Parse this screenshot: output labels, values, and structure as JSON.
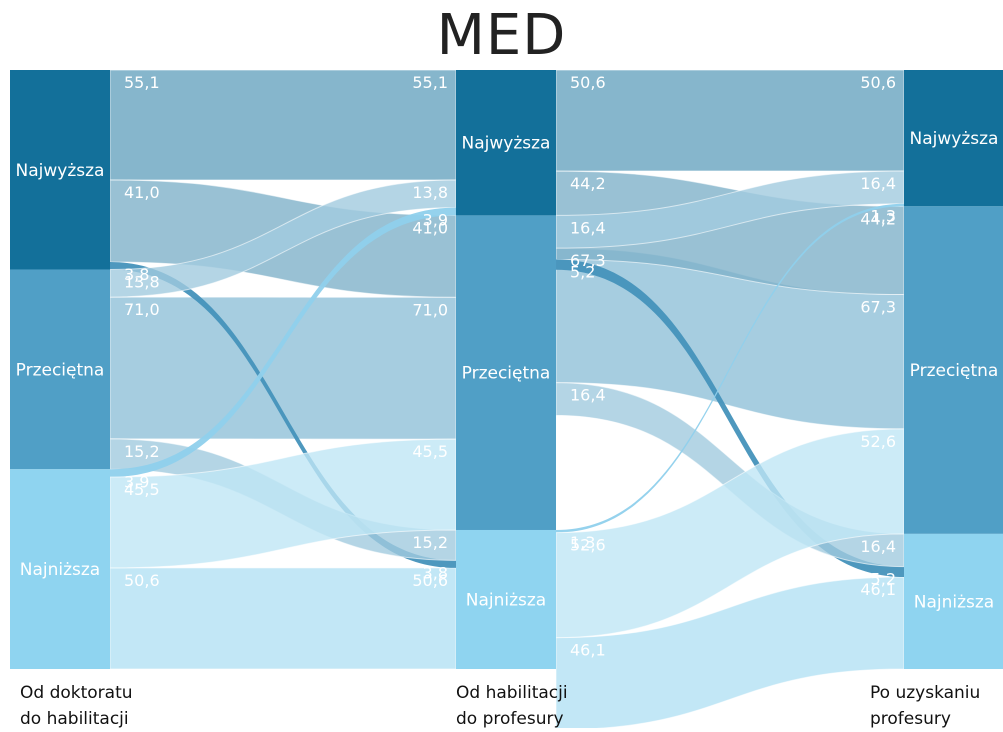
{
  "title": "MED",
  "stages": [
    "Od doktoratu\ndo habilitacji",
    "Od habilitacji\ndo profesury",
    "Po uzyskaniu\nprofesury"
  ],
  "categories": [
    "Najwyższa",
    "Przeciętna",
    "Najniższa"
  ],
  "colors": {
    "nodes": [
      "#13709a",
      "#509fc6",
      "#8fd4f0"
    ],
    "flows_from": [
      "#7fb2c9",
      "#a1cade",
      "#bfe6f5"
    ],
    "band": "#b3d4e4",
    "band_bottom": "#c6e8f5",
    "strong_line": "#4592bb",
    "light_line": "#8fd0ec",
    "white_line": "#ffffff"
  },
  "chart_data": {
    "type": "sankey",
    "title": "MED",
    "unit": "%",
    "stages": [
      {
        "name": "Od doktoratu do habilitacji",
        "flows": [
          {
            "from": "Najwyższa",
            "to": "Najwyższa",
            "value": 55.1,
            "label": "55,1"
          },
          {
            "from": "Najwyższa",
            "to": "Przeciętna",
            "value": 41.0,
            "label": "41,0"
          },
          {
            "from": "Najwyższa",
            "to": "Najniższa",
            "value": 3.8,
            "label": "3,8"
          },
          {
            "from": "Przeciętna",
            "to": "Najwyższa",
            "value": 13.8,
            "label": "13,8"
          },
          {
            "from": "Przeciętna",
            "to": "Przeciętna",
            "value": 71.0,
            "label": "71,0"
          },
          {
            "from": "Przeciętna",
            "to": "Najniższa",
            "value": 15.2,
            "label": "15,2"
          },
          {
            "from": "Najniższa",
            "to": "Najwyższa",
            "value": 3.9,
            "label": "3,9"
          },
          {
            "from": "Najniższa",
            "to": "Przeciętna",
            "value": 45.5,
            "label": "45,5"
          },
          {
            "from": "Najniższa",
            "to": "Najniższa",
            "value": 50.6,
            "label": "50,6"
          }
        ]
      },
      {
        "name": "Od habilitacji do profesury",
        "flows": [
          {
            "from": "Najwyższa",
            "to": "Najwyższa",
            "value": 50.6,
            "label": "50,6"
          },
          {
            "from": "Najwyższa",
            "to": "Przeciętna",
            "value": 44.2,
            "label": "44,2"
          },
          {
            "from": "Najwyższa",
            "to": "Najniższa",
            "value": 5.2,
            "label": "5,2"
          },
          {
            "from": "Przeciętna",
            "to": "Najwyższa",
            "value": 16.4,
            "label": "16,4"
          },
          {
            "from": "Przeciętna",
            "to": "Przeciętna",
            "value": 67.3,
            "label": "67,3"
          },
          {
            "from": "Przeciętna",
            "to": "Najniższa",
            "value": 16.4,
            "label": "16,4"
          },
          {
            "from": "Najniższa",
            "to": "Najwyższa",
            "value": 1.3,
            "label": "1,3"
          },
          {
            "from": "Najniższa",
            "to": "Przeciętna",
            "value": 52.6,
            "label": "52,6"
          },
          {
            "from": "Najniższa",
            "to": "Najniższa",
            "value": 46.1,
            "label": "46,1"
          }
        ]
      }
    ]
  }
}
